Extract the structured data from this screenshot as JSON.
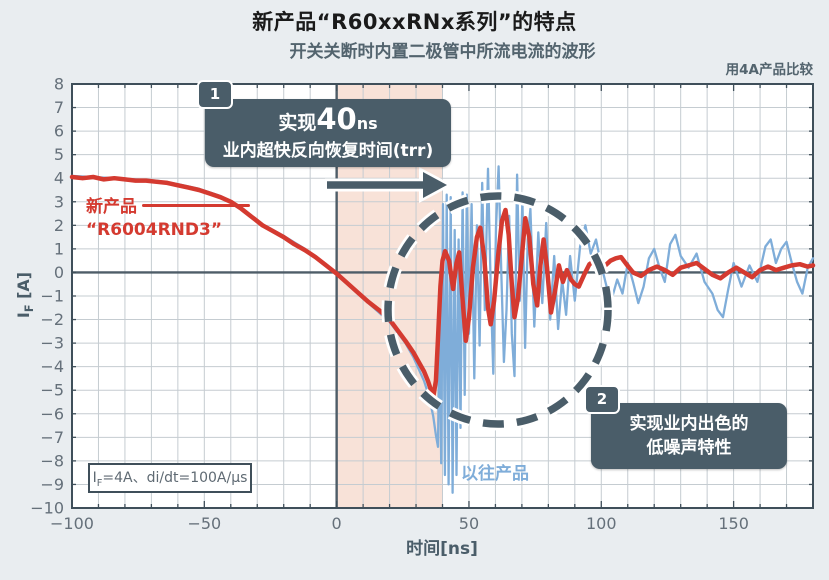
{
  "colors": {
    "page_bg": "#e9edf0",
    "plot_bg": "#ffffff",
    "red": "#d43a30",
    "blue": "#7fadd9",
    "slate": "#4a5d69",
    "border": "#3f4f5a",
    "grid": "#c5ccd1",
    "zero_line": "#4e5d68",
    "tick_text": "#65707a",
    "highlight": "#f8e2d8"
  },
  "chart_data": {
    "type": "line",
    "title": "新产品“R60xxRNx系列”的特点",
    "subtitle": "开关关断时内置二极管中所流电流的波形",
    "corner_note": "用4A产品比较",
    "xlabel": "时间[ns]",
    "ylabel": "IF [A]",
    "ylabel_parts": {
      "i": "I",
      "sub": "F",
      "unit": " [A]"
    },
    "xlim": [
      -100,
      180
    ],
    "ylim": [
      -10,
      8
    ],
    "x_ticks": [
      -100,
      -50,
      0,
      50,
      100,
      150
    ],
    "y_ticks": [
      8,
      7,
      6,
      5,
      4,
      3,
      2,
      1,
      0,
      -1,
      -2,
      -3,
      -4,
      -5,
      -6,
      -7,
      -8,
      -9,
      -10
    ],
    "grid": {
      "x_step": 10,
      "y_step": 1
    },
    "legend_position": "on-plot labels",
    "highlight_region": {
      "x_start": 0,
      "x_end": 40
    },
    "annotations": {
      "box1": {
        "number": "1",
        "text_pre": "实现",
        "text_big": "40",
        "text_unit": "ns",
        "line2": "业内超快反向恢复时间(trr)"
      },
      "box2": {
        "number": "2",
        "line1": "实现业内出色的",
        "line2": "低噪声特性"
      },
      "condition": {
        "main": "I",
        "sub": "F",
        "rest": "=4A、di/dt=100A/μs"
      },
      "label_new_line1": "新产品",
      "label_new_line2": "“R6004RND3”",
      "label_old": "以往产品"
    },
    "series": [
      {
        "name": "以往产品",
        "color": "#7fadd9",
        "width": 2.3,
        "points": [
          [
            -100,
            4.1
          ],
          [
            -92,
            4.05
          ],
          [
            -84,
            4.0
          ],
          [
            -76,
            3.95
          ],
          [
            -68,
            3.9
          ],
          [
            -60,
            3.75
          ],
          [
            -52,
            3.55
          ],
          [
            -44,
            3.25
          ],
          [
            -36,
            2.75
          ],
          [
            -28,
            2.05
          ],
          [
            -20,
            1.55
          ],
          [
            -12,
            1.0
          ],
          [
            -4,
            0.35
          ],
          [
            0,
            -0.1
          ],
          [
            4,
            -0.5
          ],
          [
            8,
            -0.9
          ],
          [
            12,
            -1.3
          ],
          [
            16,
            -1.7
          ],
          [
            20,
            -2.1
          ],
          [
            23,
            -2.55
          ],
          [
            26,
            -3.0
          ],
          [
            29,
            -3.6
          ],
          [
            31,
            -4.1
          ],
          [
            33,
            -4.6
          ],
          [
            35,
            -5.3
          ],
          [
            36.5,
            -6.1
          ],
          [
            37.5,
            -6.9
          ],
          [
            38.3,
            -7.4
          ],
          [
            38.9,
            -1.5
          ],
          [
            39.5,
            -8.1
          ],
          [
            40.2,
            2.9
          ],
          [
            40.9,
            -8.6
          ],
          [
            41.6,
            3.3
          ],
          [
            42.3,
            -9.0
          ],
          [
            43.1,
            3.2
          ],
          [
            43.8,
            -9.35
          ],
          [
            44.6,
            1.8
          ],
          [
            45.3,
            -8.6
          ],
          [
            46.1,
            1.4
          ],
          [
            46.8,
            -6.6
          ],
          [
            47.6,
            3.4
          ],
          [
            48.4,
            -5.2
          ],
          [
            49.2,
            3.3
          ],
          [
            50,
            -2.6
          ],
          [
            51,
            2.9
          ],
          [
            52,
            -4.5
          ],
          [
            53,
            2.0
          ],
          [
            54,
            -3.1
          ],
          [
            55,
            3.8
          ],
          [
            56,
            -1.6
          ],
          [
            57.2,
            4.4
          ],
          [
            58.2,
            -0.6
          ],
          [
            59.2,
            -4.3
          ],
          [
            60.2,
            1.9
          ],
          [
            61.2,
            4.5
          ],
          [
            62.2,
            0.0
          ],
          [
            63.2,
            -3.8
          ],
          [
            64.2,
            -1.6
          ],
          [
            65.2,
            2.4
          ],
          [
            66.2,
            -2.6
          ],
          [
            67.2,
            -4.4
          ],
          [
            68.2,
            4.15
          ],
          [
            69.2,
            -1.2
          ],
          [
            70.2,
            3.1
          ],
          [
            71.2,
            -3.2
          ],
          [
            72.2,
            1.4
          ],
          [
            73.2,
            2.7
          ],
          [
            74.7,
            -2.3
          ],
          [
            76.2,
            1.7
          ],
          [
            77.7,
            -1.3
          ],
          [
            79.2,
            2.1
          ],
          [
            80.7,
            -2.0
          ],
          [
            82.2,
            0.7
          ],
          [
            83.7,
            -2.4
          ],
          [
            85.2,
            -0.3
          ],
          [
            86.7,
            -1.8
          ],
          [
            88.2,
            0.7
          ],
          [
            90,
            -1.2
          ],
          [
            92,
            1.1
          ],
          [
            94,
            2.0
          ],
          [
            96,
            0.8
          ],
          [
            98,
            1.4
          ],
          [
            100,
            0.3
          ],
          [
            102,
            -0.6
          ],
          [
            104,
            -1.1
          ],
          [
            106,
            -0.3
          ],
          [
            108,
            -0.9
          ],
          [
            110,
            0.4
          ],
          [
            112,
            -0.4
          ],
          [
            114,
            -1.3
          ],
          [
            116,
            -0.6
          ],
          [
            118,
            0.6
          ],
          [
            120,
            1.0
          ],
          [
            122,
            0.2
          ],
          [
            124,
            -0.4
          ],
          [
            126,
            1.2
          ],
          [
            128,
            1.6
          ],
          [
            130,
            0.7
          ],
          [
            133,
            0.2
          ],
          [
            136,
            0.8
          ],
          [
            139,
            -0.4
          ],
          [
            142,
            -0.9
          ],
          [
            144,
            -1.6
          ],
          [
            146,
            -1.9
          ],
          [
            148,
            -0.7
          ],
          [
            150,
            0.4
          ],
          [
            153,
            -0.6
          ],
          [
            156,
            0.3
          ],
          [
            159,
            -0.4
          ],
          [
            162,
            1.1
          ],
          [
            164,
            1.4
          ],
          [
            166,
            0.4
          ],
          [
            168,
            1.0
          ],
          [
            170,
            1.3
          ],
          [
            172,
            0.4
          ],
          [
            174,
            -0.4
          ],
          [
            176,
            -0.9
          ],
          [
            178,
            0.2
          ],
          [
            180,
            0.6
          ]
        ]
      },
      {
        "name": "新产品 “R6004RND3”",
        "color": "#d43a30",
        "width": 4.5,
        "points": [
          [
            -100,
            4.05
          ],
          [
            -96,
            4.0
          ],
          [
            -92,
            4.05
          ],
          [
            -88,
            3.95
          ],
          [
            -84,
            4.0
          ],
          [
            -80,
            3.95
          ],
          [
            -76,
            3.9
          ],
          [
            -72,
            3.9
          ],
          [
            -68,
            3.85
          ],
          [
            -64,
            3.8
          ],
          [
            -60,
            3.7
          ],
          [
            -56,
            3.6
          ],
          [
            -52,
            3.5
          ],
          [
            -48,
            3.35
          ],
          [
            -44,
            3.2
          ],
          [
            -40,
            3.0
          ],
          [
            -36,
            2.7
          ],
          [
            -32,
            2.35
          ],
          [
            -28,
            2.0
          ],
          [
            -24,
            1.75
          ],
          [
            -20,
            1.5
          ],
          [
            -16,
            1.2
          ],
          [
            -12,
            0.95
          ],
          [
            -8,
            0.65
          ],
          [
            -4,
            0.3
          ],
          [
            0,
            -0.05
          ],
          [
            4,
            -0.45
          ],
          [
            8,
            -0.85
          ],
          [
            12,
            -1.25
          ],
          [
            16,
            -1.6
          ],
          [
            20,
            -2.0
          ],
          [
            23,
            -2.45
          ],
          [
            26,
            -2.9
          ],
          [
            29,
            -3.4
          ],
          [
            31,
            -3.8
          ],
          [
            33,
            -4.2
          ],
          [
            34.5,
            -4.6
          ],
          [
            35.5,
            -4.95
          ],
          [
            36.5,
            -5.3
          ],
          [
            37.5,
            -4.6
          ],
          [
            38.3,
            -2.8
          ],
          [
            39.2,
            -0.6
          ],
          [
            40,
            0.5
          ],
          [
            41,
            0.9
          ],
          [
            42.5,
            0.5
          ],
          [
            44,
            -0.7
          ],
          [
            45.3,
            0.4
          ],
          [
            46.3,
            0.85
          ],
          [
            47.5,
            -1.0
          ],
          [
            48.8,
            -2.9
          ],
          [
            50,
            -1.9
          ],
          [
            51.5,
            0.2
          ],
          [
            53,
            1.5
          ],
          [
            54.3,
            1.9
          ],
          [
            55.8,
            0.6
          ],
          [
            57.2,
            -1.5
          ],
          [
            58.2,
            -2.2
          ],
          [
            59.5,
            -1.2
          ],
          [
            61,
            0.7
          ],
          [
            62.5,
            2.2
          ],
          [
            63.8,
            2.65
          ],
          [
            65,
            1.6
          ],
          [
            66.2,
            -0.5
          ],
          [
            67.2,
            -1.9
          ],
          [
            68.5,
            -1.1
          ],
          [
            70,
            0.7
          ],
          [
            71.3,
            2.3
          ],
          [
            72.8,
            1.5
          ],
          [
            74.3,
            -0.5
          ],
          [
            75.8,
            -1.4
          ],
          [
            77,
            0.3
          ],
          [
            78.2,
            1.4
          ],
          [
            79.5,
            0.2
          ],
          [
            81,
            -1.7
          ],
          [
            82.5,
            -0.8
          ],
          [
            84,
            0.3
          ],
          [
            85.5,
            -0.4
          ],
          [
            87,
            0.1
          ],
          [
            88.5,
            -0.3
          ],
          [
            90,
            -0.5
          ],
          [
            91.5,
            -0.6
          ],
          [
            93.5,
            -0.1
          ],
          [
            95.5,
            0.35
          ],
          [
            97.5,
            0.5
          ],
          [
            99.5,
            0.25
          ],
          [
            101.5,
            0.3
          ],
          [
            103.5,
            0.5
          ],
          [
            105.5,
            0.6
          ],
          [
            107.5,
            0.65
          ],
          [
            109.5,
            0.35
          ],
          [
            112,
            0.0
          ],
          [
            115,
            -0.15
          ],
          [
            118,
            0.1
          ],
          [
            121,
            0.25
          ],
          [
            124,
            0.1
          ],
          [
            127,
            -0.1
          ],
          [
            130,
            0.2
          ],
          [
            133,
            0.3
          ],
          [
            136,
            0.4
          ],
          [
            139,
            0.15
          ],
          [
            142,
            -0.1
          ],
          [
            145,
            -0.25
          ],
          [
            148,
            0.0
          ],
          [
            151,
            0.2
          ],
          [
            154,
            0.0
          ],
          [
            157,
            -0.2
          ],
          [
            160,
            0.1
          ],
          [
            163,
            0.25
          ],
          [
            166,
            0.1
          ],
          [
            169,
            0.2
          ],
          [
            172,
            0.3
          ],
          [
            175,
            0.35
          ],
          [
            178,
            0.25
          ],
          [
            180,
            0.3
          ]
        ]
      }
    ]
  }
}
